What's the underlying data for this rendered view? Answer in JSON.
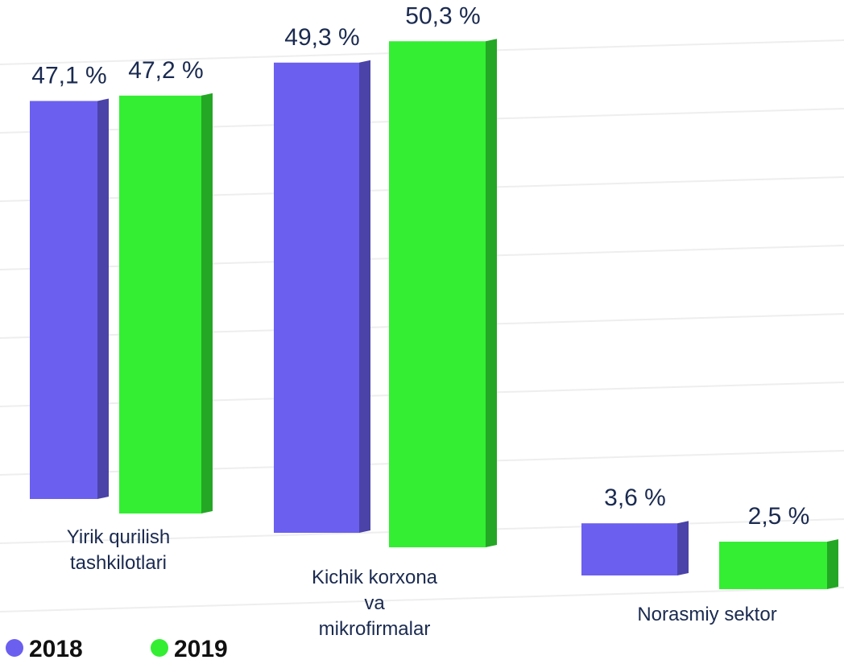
{
  "chart_data": {
    "type": "bar",
    "categories": [
      "Yirik qurilish\ntashkilotlari",
      "Kichik korxona\nva\nmikrofirmalar",
      "Norasmiy sektor"
    ],
    "series": [
      {
        "name": "2018",
        "color": "#6b5ff0",
        "values": [
          47.1,
          49.3,
          3.6
        ],
        "value_labels": [
          "47,1 %",
          "49,3 %",
          "3,6 %"
        ]
      },
      {
        "name": "2019",
        "color": "#33ee33",
        "values": [
          47.2,
          50.3,
          2.5
        ],
        "value_labels": [
          "47,2 %",
          "50,3 %",
          "2,5 %"
        ]
      }
    ],
    "legend": "bottom-left"
  }
}
